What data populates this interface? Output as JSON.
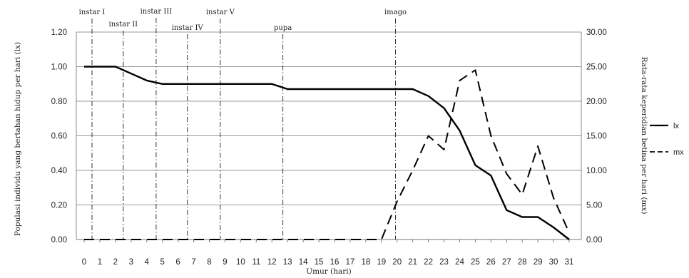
{
  "chart_data": {
    "type": "line",
    "title": "",
    "xlabel": "Umur (hari)",
    "ylabel_left": "Populasi individu yang bertahan hidup per hari (lx)",
    "ylabel_right": "Rata-rata keperidian betina per hari (mx)",
    "ylim_left": [
      0,
      1.2
    ],
    "ylim_right": [
      0,
      30
    ],
    "yticks_left": [
      "0.00",
      "0.20",
      "0.40",
      "0.60",
      "0.80",
      "1.00",
      "1.20"
    ],
    "yticks_right": [
      "0.00",
      "5.00",
      "10.00",
      "15.00",
      "20.00",
      "25.00",
      "30.00"
    ],
    "x": [
      0,
      1,
      2,
      3,
      4,
      5,
      6,
      7,
      8,
      9,
      10,
      11,
      12,
      13,
      14,
      15,
      16,
      17,
      18,
      19,
      20,
      21,
      22,
      23,
      24,
      25,
      26,
      27,
      28,
      29,
      30,
      31
    ],
    "xticks": [
      "0",
      "1",
      "2",
      "3",
      "4",
      "5",
      "6",
      "7",
      "8",
      "9",
      "10",
      "11",
      "12",
      "13",
      "14",
      "15",
      "16",
      "17",
      "18",
      "19",
      "20",
      "21",
      "22",
      "23",
      "24",
      "25",
      "26",
      "27",
      "28",
      "29",
      "30",
      "31"
    ],
    "grid": true,
    "legend_position": "right",
    "series": [
      {
        "name": "lx",
        "axis": "left",
        "style": "solid",
        "values": [
          1.0,
          1.0,
          1.0,
          0.96,
          0.92,
          0.9,
          0.9,
          0.9,
          0.9,
          0.9,
          0.9,
          0.9,
          0.9,
          0.87,
          0.87,
          0.87,
          0.87,
          0.87,
          0.87,
          0.87,
          0.87,
          0.87,
          0.83,
          0.76,
          0.63,
          0.43,
          0.37,
          0.17,
          0.13,
          0.13,
          0.07,
          0.0
        ]
      },
      {
        "name": "mx",
        "axis": "right",
        "style": "dashed",
        "values": [
          0,
          0,
          0,
          0,
          0,
          0,
          0,
          0,
          0,
          0,
          0,
          0,
          0,
          0,
          0,
          0,
          0,
          0,
          0,
          0,
          5.5,
          10,
          15,
          13,
          23,
          24.5,
          15,
          9.5,
          6.5,
          13.5,
          6,
          1
        ]
      }
    ],
    "annotations": [
      {
        "label": "instar I",
        "x": 0.5
      },
      {
        "label": "instar II",
        "x": 2.5
      },
      {
        "label": "instar III",
        "x": 4.6
      },
      {
        "label": "instar IV",
        "x": 6.6
      },
      {
        "label": "instar V",
        "x": 8.7
      },
      {
        "label": "pupa",
        "x": 12.7
      },
      {
        "label": "imago",
        "x": 19.9
      }
    ]
  }
}
